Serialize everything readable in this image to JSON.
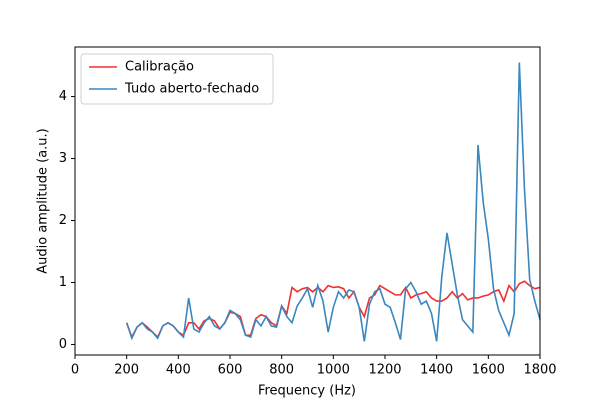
{
  "chart_data": {
    "type": "line",
    "xlabel": "Frequency (Hz)",
    "ylabel": "Audio amplitude (a.u.)",
    "x": [
      200,
      220,
      240,
      260,
      280,
      300,
      320,
      340,
      360,
      380,
      400,
      420,
      440,
      460,
      480,
      500,
      520,
      540,
      560,
      580,
      600,
      620,
      640,
      660,
      680,
      700,
      720,
      740,
      760,
      780,
      800,
      820,
      840,
      860,
      880,
      900,
      920,
      940,
      960,
      980,
      1000,
      1020,
      1040,
      1060,
      1080,
      1100,
      1120,
      1140,
      1160,
      1180,
      1200,
      1220,
      1240,
      1260,
      1280,
      1300,
      1320,
      1340,
      1360,
      1380,
      1400,
      1420,
      1440,
      1460,
      1480,
      1500,
      1520,
      1540,
      1560,
      1580,
      1600,
      1620,
      1640,
      1660,
      1680,
      1700,
      1720,
      1740,
      1760,
      1780,
      1800
    ],
    "series": [
      {
        "name": "Calibração",
        "color": "#f03030",
        "values": [
          0.35,
          0.12,
          0.28,
          0.35,
          0.28,
          0.2,
          0.12,
          0.3,
          0.35,
          0.3,
          0.2,
          0.15,
          0.35,
          0.35,
          0.25,
          0.38,
          0.42,
          0.38,
          0.25,
          0.35,
          0.52,
          0.5,
          0.45,
          0.15,
          0.15,
          0.42,
          0.48,
          0.45,
          0.35,
          0.3,
          0.62,
          0.5,
          0.92,
          0.85,
          0.9,
          0.92,
          0.85,
          0.92,
          0.85,
          0.95,
          0.92,
          0.93,
          0.9,
          0.75,
          0.85,
          0.6,
          0.45,
          0.75,
          0.8,
          0.95,
          0.9,
          0.85,
          0.8,
          0.8,
          0.92,
          0.75,
          0.8,
          0.82,
          0.85,
          0.75,
          0.7,
          0.7,
          0.75,
          0.85,
          0.75,
          0.82,
          0.72,
          0.75,
          0.75,
          0.78,
          0.8,
          0.85,
          0.88,
          0.7,
          0.95,
          0.85,
          0.98,
          1.02,
          0.95,
          0.9,
          0.92
        ]
      },
      {
        "name": "Tudo aberto-fechado",
        "color": "#3a87bf",
        "values": [
          0.35,
          0.1,
          0.28,
          0.35,
          0.25,
          0.2,
          0.1,
          0.3,
          0.35,
          0.3,
          0.2,
          0.12,
          0.75,
          0.25,
          0.2,
          0.35,
          0.45,
          0.3,
          0.25,
          0.35,
          0.55,
          0.5,
          0.4,
          0.15,
          0.12,
          0.4,
          0.3,
          0.45,
          0.3,
          0.28,
          0.62,
          0.45,
          0.35,
          0.62,
          0.75,
          0.9,
          0.6,
          0.95,
          0.7,
          0.2,
          0.6,
          0.85,
          0.75,
          0.88,
          0.85,
          0.6,
          0.05,
          0.65,
          0.85,
          0.9,
          0.65,
          0.6,
          0.35,
          0.08,
          0.9,
          1.0,
          0.85,
          0.65,
          0.7,
          0.5,
          0.05,
          1.1,
          1.8,
          1.3,
          0.8,
          0.4,
          0.3,
          0.2,
          3.22,
          2.3,
          1.7,
          0.9,
          0.55,
          0.35,
          0.15,
          0.5,
          4.55,
          2.5,
          1.05,
          0.7,
          0.4
        ]
      }
    ],
    "xlim": [
      0,
      1800
    ],
    "xticks": [
      0,
      200,
      400,
      600,
      800,
      1000,
      1200,
      1400,
      1600,
      1800
    ],
    "ylim": [
      -0.17,
      4.8
    ],
    "yticks": [
      0,
      1,
      2,
      3,
      4
    ],
    "legend": "upper left"
  }
}
